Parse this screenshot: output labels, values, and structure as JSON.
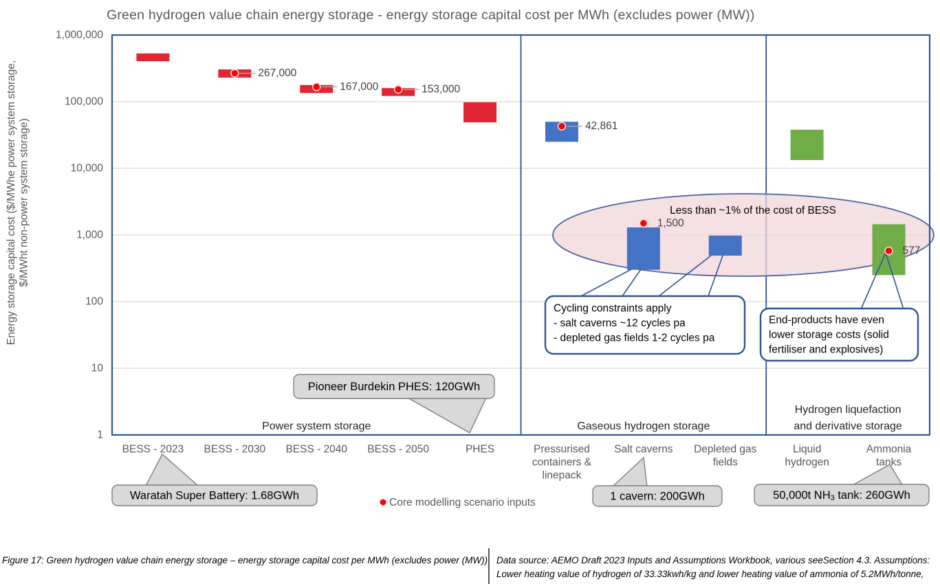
{
  "title": "Green hydrogen value chain energy storage - energy storage capital cost per MWh (excludes power (MW))",
  "chart_data": {
    "type": "bar",
    "subtype": "floating-range-columns-log-scale",
    "ylabel_lines": [
      "Energy storage capital cost ($/MWhe power system storage,",
      "$/MWht non-power system storage)"
    ],
    "y_ticks": [
      "1,000,000",
      "100,000",
      "10,000",
      "1,000",
      "100",
      "10",
      "1"
    ],
    "ylim": [
      1,
      1000000
    ],
    "grid": "horizontal",
    "legend_position": "bottom",
    "categories": [
      {
        "lines": [
          "BESS - 2023"
        ]
      },
      {
        "lines": [
          "BESS - 2030"
        ]
      },
      {
        "lines": [
          "BESS - 2040"
        ]
      },
      {
        "lines": [
          "BESS - 2050"
        ]
      },
      {
        "lines": [
          "PHES"
        ]
      },
      {
        "lines": [
          "Pressurised",
          "containers &",
          "linepack"
        ]
      },
      {
        "lines": [
          "Salt caverns"
        ]
      },
      {
        "lines": [
          "Depleted gas",
          "fields"
        ]
      },
      {
        "lines": [
          "Liquid",
          "hydrogen"
        ]
      },
      {
        "lines": [
          "Ammonia",
          "tanks"
        ]
      }
    ],
    "bars": [
      {
        "category": "BESS - 2023",
        "group": "power_system",
        "low": 405000,
        "high": 530000,
        "dot": null,
        "dot_label": null,
        "label_style": null
      },
      {
        "category": "BESS - 2030",
        "group": "power_system",
        "low": 230000,
        "high": 305000,
        "dot": 267000,
        "dot_label": "267,000",
        "label_style": "leader"
      },
      {
        "category": "BESS - 2040",
        "group": "power_system",
        "low": 135000,
        "high": 178000,
        "dot": 167000,
        "dot_label": "167,000",
        "label_style": "leader"
      },
      {
        "category": "BESS - 2050",
        "group": "power_system",
        "low": 122000,
        "high": 160000,
        "dot": 153000,
        "dot_label": "153,000",
        "label_style": "leader"
      },
      {
        "category": "PHES",
        "group": "power_system",
        "low": 49000,
        "high": 98000,
        "dot": null,
        "dot_label": null,
        "label_style": null
      },
      {
        "category": "Pressurised containers & linepack",
        "group": "gaseous",
        "low": 25000,
        "high": 50000,
        "dot": 42861,
        "dot_label": "42,861",
        "label_style": "leader"
      },
      {
        "category": "Salt caverns",
        "group": "gaseous",
        "low": 300,
        "high": 1300,
        "dot": 1500,
        "dot_label": "1,500",
        "label_style": "adjacent"
      },
      {
        "category": "Depleted gas fields",
        "group": "gaseous",
        "low": 490,
        "high": 980,
        "dot": null,
        "dot_label": null,
        "label_style": null
      },
      {
        "category": "Liquid hydrogen",
        "group": "liquefaction",
        "low": 13300,
        "high": 38000,
        "dot": null,
        "dot_label": null,
        "label_style": null
      },
      {
        "category": "Ammonia tanks",
        "group": "liquefaction",
        "low": 250,
        "high": 1450,
        "dot": 577,
        "dot_label": "577",
        "label_style": "adjacent"
      }
    ],
    "sections": [
      {
        "label_lines": [
          "Power system storage"
        ],
        "from": 0,
        "to": 4
      },
      {
        "label_lines": [
          "Gaseous hydrogen storage"
        ],
        "from": 5,
        "to": 7
      },
      {
        "label_lines": [
          "Hydrogen liquefaction",
          "and derivative storage"
        ],
        "from": 8,
        "to": 9
      }
    ],
    "legend": {
      "marker": "red-dot",
      "label": "Core modelling scenario inputs"
    },
    "annotations": {
      "ellipse_note": {
        "text": "Less than ~1% of the cost of BESS"
      },
      "cycling_note": {
        "lines": [
          "Cycling constraints apply",
          "- salt caverns ~12 cycles pa",
          "- depleted gas fields 1-2 cycles pa"
        ]
      },
      "end_products_note": {
        "lines": [
          "End-products have even",
          "lower storage costs (solid",
          "fertiliser and explosives)"
        ]
      },
      "callouts": [
        {
          "id": "waratah",
          "text": "Waratah Super Battery: 1.68GWh"
        },
        {
          "id": "pioneer-burdekin",
          "text": "Pioneer Burdekin PHES: 120GWh"
        },
        {
          "id": "salt-cavern-size",
          "text": "1 cavern: 200GWh"
        },
        {
          "id": "ammonia-tank-size",
          "text_prefix": "50,000t NH",
          "text_sub": "3",
          "text_suffix": " tank: 260GWh"
        }
      ]
    },
    "colors": {
      "power_system": "#E22433",
      "gaseous": "#4472C4",
      "liquefaction": "#70AD47",
      "dot": "#FF0000",
      "dot_ring": "#E7E6E6",
      "frame": "#2F5597",
      "gridline": "#D9D9D9",
      "ellipse_stroke": "#4A64A8",
      "ellipse_fill": "rgba(242,213,218,0.75)",
      "callout_fill": "#D9D9D9",
      "callout_stroke": "#7F7F7F",
      "leader": "#A6A6A6",
      "text_gray": "#595959",
      "text_dark": "#262626"
    }
  },
  "footer": {
    "caption": "Figure 17: Green hydrogen value chain  energy storage – energy storage capital cost per MWh (excludes power (MW))",
    "source_line1": "Data source: AEMO Draft 2023 Inputs and Assumptions Workbook, various seeSection 4.3. Assumptions:",
    "source_line2": "Lower heating value of hydrogen of 33.33kwh/kg and lower heating value of ammonia of 5.2MWh/tonne,"
  }
}
